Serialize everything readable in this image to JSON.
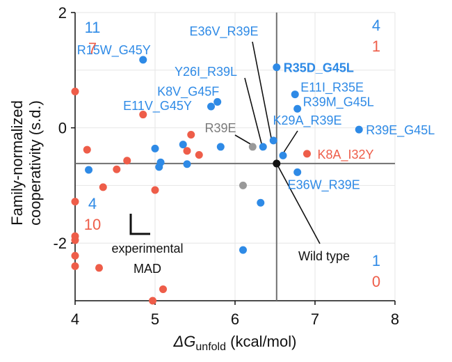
{
  "chart_data": {
    "type": "scatter",
    "xlabel_prefix": "ΔG",
    "xlabel_sub": "unfold",
    "xlabel_suffix": " (kcal/mol)",
    "ylabel_line1": "Family-normalized",
    "ylabel_line2": "cooperativity (s.d.)",
    "xlim": [
      4,
      8
    ],
    "ylim": [
      -3,
      2
    ],
    "xticks": [
      4,
      5,
      6,
      7,
      8
    ],
    "yticks": [
      -2,
      0,
      2
    ],
    "grid": true,
    "colors": {
      "blue": "#2e8ae6",
      "red": "#ee5d49",
      "gray": "#999999",
      "black": "#111111"
    },
    "wild_type_point": {
      "x": 6.52,
      "y": -0.62
    },
    "quadrant_counts": [
      {
        "quadrant": "top-left",
        "blue": "11",
        "red": "7"
      },
      {
        "quadrant": "top-right",
        "blue": "4",
        "red": "1"
      },
      {
        "quadrant": "bottom-left",
        "blue": "4",
        "red": "10"
      },
      {
        "quadrant": "bottom-right",
        "blue": "1",
        "red": "0"
      }
    ],
    "annotations": {
      "mad_line1": "experimental",
      "mad_line2": "MAD",
      "wild_type": "Wild type"
    },
    "points": [
      {
        "x": 4.85,
        "y": 1.18,
        "color": "blue",
        "label": "R15W_G45Y",
        "bold": false
      },
      {
        "x": 6.52,
        "y": 1.05,
        "color": "blue",
        "label": "R35D_G45L",
        "bold": true
      },
      {
        "x": 6.75,
        "y": 0.58,
        "color": "blue",
        "label": "E11I_R35E",
        "bold": false
      },
      {
        "x": 6.78,
        "y": 0.33,
        "color": "blue",
        "label": "R39M_G45L",
        "bold": false
      },
      {
        "x": 7.55,
        "y": -0.03,
        "color": "blue",
        "label": "R39E_G45L",
        "bold": false
      },
      {
        "x": 5.78,
        "y": 0.45,
        "color": "blue",
        "label": "K8V_G45F",
        "bold": false
      },
      {
        "x": 5.7,
        "y": 0.37,
        "color": "blue",
        "label": "E11V_G45Y",
        "bold": false
      },
      {
        "x": 6.48,
        "y": -0.22,
        "color": "blue",
        "label": "E36V_R39E",
        "bold": false
      },
      {
        "x": 6.35,
        "y": -0.33,
        "color": "blue",
        "label": "Y26I_R39L",
        "bold": false
      },
      {
        "x": 6.6,
        "y": -0.48,
        "color": "blue",
        "label": "K29A_R39E",
        "bold": false
      },
      {
        "x": 6.78,
        "y": -0.77,
        "color": "blue",
        "label": "E36W_R39E",
        "bold": false
      },
      {
        "x": 6.9,
        "y": -0.45,
        "color": "red",
        "label": "K8A_I32Y",
        "bold": false
      },
      {
        "x": 6.22,
        "y": -0.33,
        "color": "gray",
        "label": "R39E",
        "bold": false
      },
      {
        "x": 6.1,
        "y": -1.0,
        "color": "gray",
        "label": "",
        "bold": false
      },
      {
        "x": 4.17,
        "y": -0.73,
        "color": "blue",
        "label": "",
        "bold": false
      },
      {
        "x": 5.0,
        "y": -0.36,
        "color": "blue",
        "label": "",
        "bold": false
      },
      {
        "x": 5.07,
        "y": -0.6,
        "color": "blue",
        "label": "",
        "bold": false
      },
      {
        "x": 5.05,
        "y": -0.68,
        "color": "blue",
        "label": "",
        "bold": false
      },
      {
        "x": 5.35,
        "y": -0.29,
        "color": "blue",
        "label": "",
        "bold": false
      },
      {
        "x": 5.4,
        "y": -0.63,
        "color": "blue",
        "label": "",
        "bold": false
      },
      {
        "x": 5.82,
        "y": -0.33,
        "color": "blue",
        "label": "",
        "bold": false
      },
      {
        "x": 6.32,
        "y": -1.3,
        "color": "blue",
        "label": "",
        "bold": false
      },
      {
        "x": 6.1,
        "y": -2.12,
        "color": "blue",
        "label": "",
        "bold": false
      },
      {
        "x": 4.0,
        "y": 0.63,
        "color": "red",
        "label": "",
        "bold": false
      },
      {
        "x": 4.85,
        "y": 0.23,
        "color": "red",
        "label": "",
        "bold": false
      },
      {
        "x": 5.45,
        "y": -0.12,
        "color": "red",
        "label": "",
        "bold": false
      },
      {
        "x": 5.4,
        "y": -0.4,
        "color": "red",
        "label": "",
        "bold": false
      },
      {
        "x": 5.55,
        "y": -0.47,
        "color": "red",
        "label": "",
        "bold": false
      },
      {
        "x": 4.15,
        "y": -0.38,
        "color": "red",
        "label": "",
        "bold": false
      },
      {
        "x": 4.65,
        "y": -0.57,
        "color": "red",
        "label": "",
        "bold": false
      },
      {
        "x": 4.52,
        "y": -0.72,
        "color": "red",
        "label": "",
        "bold": false
      },
      {
        "x": 4.35,
        "y": -1.03,
        "color": "red",
        "label": "",
        "bold": false
      },
      {
        "x": 5.0,
        "y": -1.08,
        "color": "red",
        "label": "",
        "bold": false
      },
      {
        "x": 4.0,
        "y": -1.28,
        "color": "red",
        "label": "",
        "bold": false
      },
      {
        "x": 4.0,
        "y": -1.88,
        "color": "red",
        "label": "",
        "bold": false
      },
      {
        "x": 4.0,
        "y": -1.95,
        "color": "red",
        "label": "",
        "bold": false
      },
      {
        "x": 4.0,
        "y": -2.22,
        "color": "red",
        "label": "",
        "bold": false
      },
      {
        "x": 4.0,
        "y": -2.4,
        "color": "red",
        "label": "",
        "bold": false
      },
      {
        "x": 4.3,
        "y": -2.43,
        "color": "red",
        "label": "",
        "bold": false
      },
      {
        "x": 5.1,
        "y": -2.8,
        "color": "red",
        "label": "",
        "bold": false
      },
      {
        "x": 4.97,
        "y": -3.0,
        "color": "red",
        "label": "",
        "bold": false
      }
    ]
  }
}
